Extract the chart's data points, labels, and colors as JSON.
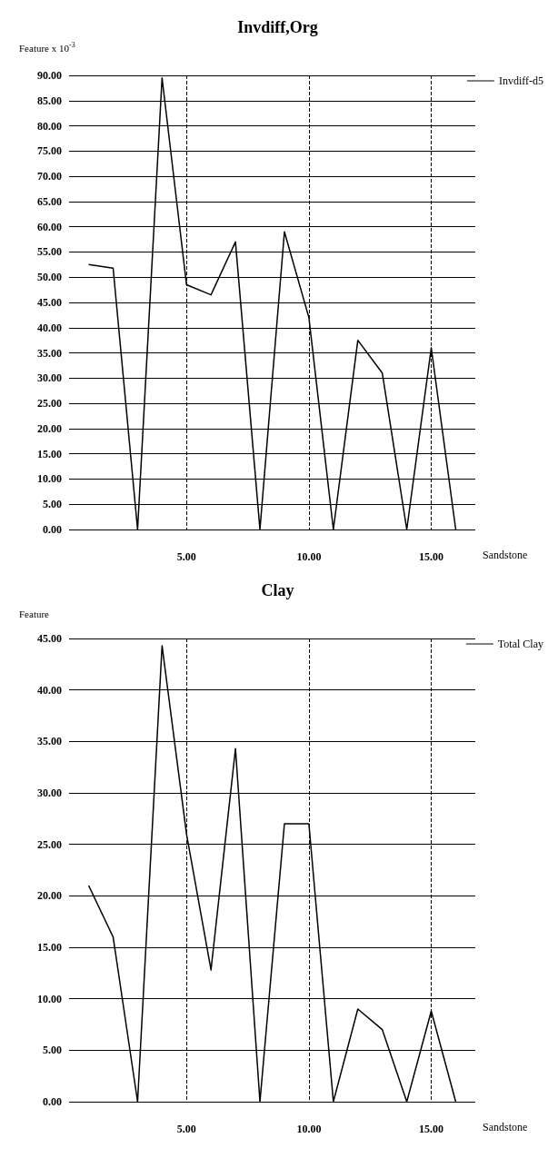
{
  "chart_data": [
    {
      "type": "line",
      "title": "Invdiff,Org",
      "ylabel": "Feature x 10$^{-3}$",
      "xlabel": "Sandstone",
      "x": [
        1,
        2,
        3,
        4,
        5,
        6,
        7,
        8,
        9,
        10,
        11,
        12,
        13,
        14,
        15,
        16
      ],
      "series": [
        {
          "name": "Invdiff-d5",
          "color": "#000000",
          "values": [
            52.5,
            51.8,
            0,
            89.5,
            48.5,
            46.5,
            57,
            0,
            59,
            42,
            0,
            37.5,
            31,
            0,
            36,
            0
          ]
        }
      ],
      "xlim": [
        0.2,
        16.8
      ],
      "xticks": [
        {
          "value": 5,
          "label": "5.00"
        },
        {
          "value": 10,
          "label": "10.00"
        },
        {
          "value": 15,
          "label": "15.00"
        }
      ],
      "ylim": [
        0,
        90
      ],
      "yticks": [
        {
          "value": 0,
          "label": "0.00"
        },
        {
          "value": 5,
          "label": "5.00"
        },
        {
          "value": 10,
          "label": "10.00"
        },
        {
          "value": 15,
          "label": "15.00"
        },
        {
          "value": 20,
          "label": "20.00"
        },
        {
          "value": 25,
          "label": "25.00"
        },
        {
          "value": 30,
          "label": "30.00"
        },
        {
          "value": 35,
          "label": "35.00"
        },
        {
          "value": 40,
          "label": "40.00"
        },
        {
          "value": 45,
          "label": "45.00"
        },
        {
          "value": 50,
          "label": "50.00"
        },
        {
          "value": 55,
          "label": "55.00"
        },
        {
          "value": 60,
          "label": "60.00"
        },
        {
          "value": 65,
          "label": "65.00"
        },
        {
          "value": 70,
          "label": "70.00"
        },
        {
          "value": 75,
          "label": "75.00"
        },
        {
          "value": 80,
          "label": "80.00"
        },
        {
          "value": 85,
          "label": "85.00"
        },
        {
          "value": 90,
          "label": "90.00"
        }
      ],
      "grid": true,
      "legend": "top right",
      "marker": "none",
      "line_style": "solid"
    },
    {
      "type": "line",
      "title": "Clay",
      "ylabel": "Feature",
      "xlabel": "Sandstone",
      "x": [
        1,
        2,
        3,
        4,
        5,
        6,
        7,
        8,
        9,
        10,
        11,
        12,
        13,
        14,
        15,
        16
      ],
      "series": [
        {
          "name": "Total Clay",
          "color": "#000000",
          "values": [
            21,
            16,
            0,
            44.3,
            26,
            12.8,
            34.3,
            0,
            27,
            27,
            0,
            9,
            7,
            0,
            8.8,
            0
          ]
        }
      ],
      "xlim": [
        0.2,
        16.8
      ],
      "xticks": [
        {
          "value": 5,
          "label": "5.00"
        },
        {
          "value": 10,
          "label": "10.00"
        },
        {
          "value": 15,
          "label": "15.00"
        }
      ],
      "ylim": [
        0,
        45
      ],
      "yticks": [
        {
          "value": 0,
          "label": "0.00"
        },
        {
          "value": 5,
          "label": "5.00"
        },
        {
          "value": 10,
          "label": "10.00"
        },
        {
          "value": 15,
          "label": "15.00"
        },
        {
          "value": 20,
          "label": "20.00"
        },
        {
          "value": 25,
          "label": "25.00"
        },
        {
          "value": 30,
          "label": "30.00"
        },
        {
          "value": 35,
          "label": "35.00"
        },
        {
          "value": 40,
          "label": "40.00"
        },
        {
          "value": 45,
          "label": "45.00"
        }
      ],
      "grid": true,
      "legend": "top right",
      "marker": "none",
      "line_style": "solid"
    }
  ]
}
